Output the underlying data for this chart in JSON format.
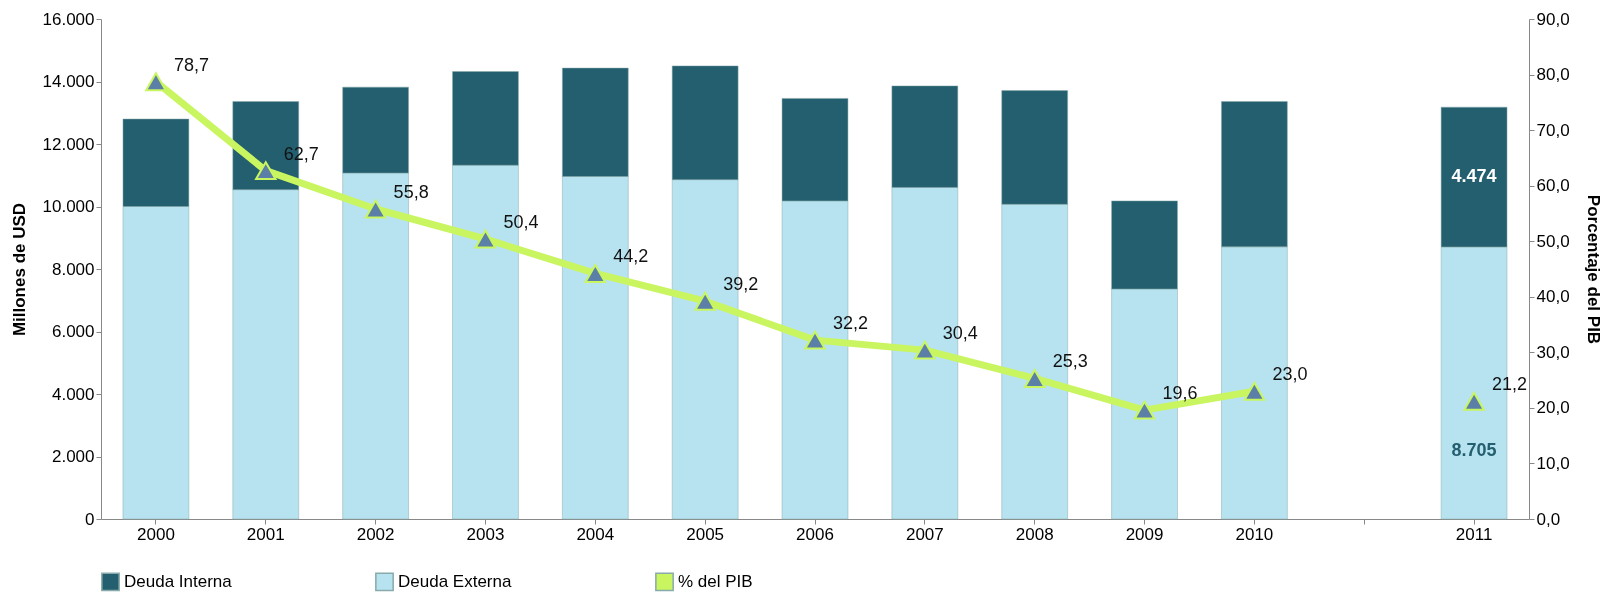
{
  "chart_data": {
    "type": "bar",
    "stacked": true,
    "categories": [
      "2000",
      "2001",
      "2002",
      "2003",
      "2004",
      "2005",
      "2006",
      "2007",
      "2008",
      "2009",
      "2010",
      null,
      "2011"
    ],
    "ylabel": "Millones de USD",
    "y2label": "Porcentaje del PIB",
    "ylim": [
      0,
      16000
    ],
    "yticks": [
      {
        "value": 0,
        "label": "0"
      },
      {
        "value": 2000,
        "label": "2.000"
      },
      {
        "value": 4000,
        "label": "4.000"
      },
      {
        "value": 6000,
        "label": "6.000"
      },
      {
        "value": 8000,
        "label": "8.000"
      },
      {
        "value": 10000,
        "label": "10.000"
      },
      {
        "value": 12000,
        "label": "12.000"
      },
      {
        "value": 14000,
        "label": "14.000"
      },
      {
        "value": 16000,
        "label": "16.000"
      }
    ],
    "y2lim": [
      0,
      90
    ],
    "y2ticks": [
      {
        "value": 0,
        "label": "0,0"
      },
      {
        "value": 10,
        "label": "10,0"
      },
      {
        "value": 20,
        "label": "20,0"
      },
      {
        "value": 30,
        "label": "30,0"
      },
      {
        "value": 40,
        "label": "40,0"
      },
      {
        "value": 50,
        "label": "50,0"
      },
      {
        "value": 60,
        "label": "60,0"
      },
      {
        "value": 70,
        "label": "70,0"
      },
      {
        "value": 80,
        "label": "80,0"
      },
      {
        "value": 90,
        "label": "90,0"
      }
    ],
    "legend": "bottom",
    "grid": false,
    "marker": "triangle",
    "line_style": "solid",
    "series": [
      {
        "name": "Deuda Externa",
        "color": "#b7e3f0",
        "values": [
          10000,
          10540,
          11070,
          11320,
          10960,
          10860,
          10180,
          10610,
          10070,
          7360,
          8710,
          null,
          8705
        ],
        "value_labels": [
          null,
          null,
          null,
          null,
          null,
          null,
          null,
          null,
          null,
          null,
          null,
          null,
          "8.705"
        ]
      },
      {
        "name": "Deuda Interna",
        "color": "#245f6f",
        "values": [
          2800,
          2820,
          2750,
          3000,
          3470,
          3640,
          3280,
          3250,
          3640,
          2820,
          4650,
          null,
          4474
        ],
        "value_labels": [
          null,
          null,
          null,
          null,
          null,
          null,
          null,
          null,
          null,
          null,
          null,
          null,
          "4.474"
        ]
      },
      {
        "name": "% del PIB",
        "type": "line",
        "axis": "y2",
        "color": "#c8f560",
        "values": [
          78.7,
          62.7,
          55.8,
          50.4,
          44.2,
          39.2,
          32.2,
          30.4,
          25.3,
          19.6,
          23.0,
          null,
          21.2
        ],
        "value_labels": [
          "78,7",
          "62,7",
          "55,8",
          "50,4",
          "44,2",
          "39,2",
          "32,2",
          "30,4",
          "25,3",
          "19,6",
          "23,0",
          null,
          "21,2"
        ]
      }
    ]
  }
}
